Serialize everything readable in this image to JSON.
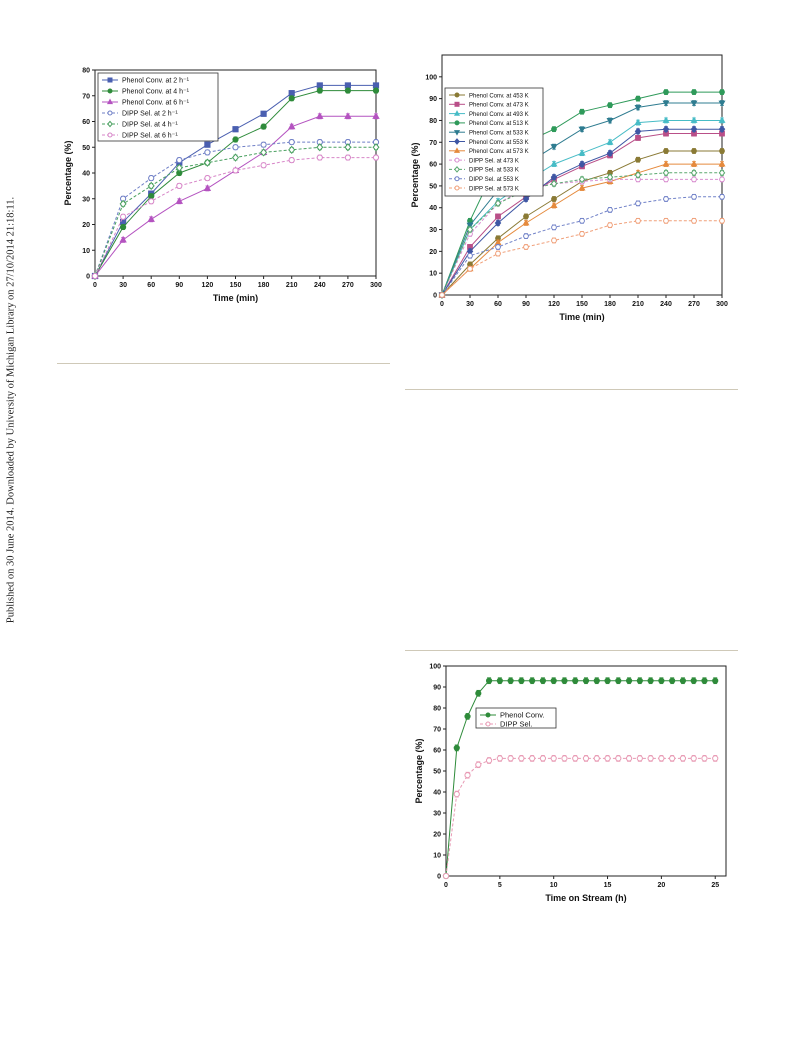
{
  "side_note": "Published on 30 June 2014. Downloaded by University of Michigan Library on 27/10/2014 21:18:11.",
  "chart_data": [
    {
      "id": "a",
      "type": "line",
      "xlabel": "Time (min)",
      "ylabel": "Percentage (%)",
      "xlim": [
        0,
        300
      ],
      "ylim": [
        0,
        80
      ],
      "xticks": [
        0,
        30,
        60,
        90,
        120,
        150,
        180,
        210,
        240,
        270,
        300
      ],
      "yticks": [
        0,
        10,
        20,
        30,
        40,
        50,
        60,
        70,
        80
      ],
      "legend_position": "top-left",
      "series": [
        {
          "name": "Phenol Conv. at 2 h⁻¹",
          "color": "#4a5fb0",
          "marker": "square",
          "filled": true,
          "dash": false,
          "x": [
            0,
            30,
            60,
            90,
            120,
            150,
            180,
            210,
            240,
            270,
            300
          ],
          "y": [
            0,
            21,
            32,
            44,
            51,
            57,
            63,
            71,
            74,
            74,
            74
          ]
        },
        {
          "name": "Phenol Conv. at 4 h⁻¹",
          "color": "#2e8b3a",
          "marker": "circle",
          "filled": true,
          "dash": false,
          "x": [
            0,
            30,
            60,
            90,
            120,
            150,
            180,
            210,
            240,
            270,
            300
          ],
          "y": [
            0,
            19,
            31,
            40,
            44,
            53,
            58,
            69,
            72,
            72,
            72
          ]
        },
        {
          "name": "Phenol Conv. at 6 h⁻¹",
          "color": "#b453c0",
          "marker": "triangle",
          "filled": true,
          "dash": false,
          "x": [
            0,
            30,
            60,
            90,
            120,
            150,
            180,
            210,
            240,
            270,
            300
          ],
          "y": [
            0,
            14,
            22,
            29,
            34,
            41,
            48,
            58,
            62,
            62,
            62
          ]
        },
        {
          "name": "DIPP Sel. at 2 h⁻¹",
          "color": "#6f7fc6",
          "marker": "circle",
          "filled": false,
          "dash": true,
          "x": [
            0,
            30,
            60,
            90,
            120,
            150,
            180,
            210,
            240,
            270,
            300
          ],
          "y": [
            0,
            30,
            38,
            45,
            48,
            50,
            51,
            52,
            52,
            52,
            52
          ]
        },
        {
          "name": "DIPP Sel. at 4 h⁻¹",
          "color": "#4aa060",
          "marker": "diamond",
          "filled": false,
          "dash": true,
          "x": [
            0,
            30,
            60,
            90,
            120,
            150,
            180,
            210,
            240,
            270,
            300
          ],
          "y": [
            0,
            28,
            35,
            42,
            44,
            46,
            48,
            49,
            50,
            50,
            50
          ]
        },
        {
          "name": "DIPP Sel. at 6 h⁻¹",
          "color": "#d786c8",
          "marker": "circle",
          "filled": false,
          "dash": true,
          "x": [
            0,
            30,
            60,
            90,
            120,
            150,
            180,
            210,
            240,
            270,
            300
          ],
          "y": [
            0,
            23,
            29,
            35,
            38,
            41,
            43,
            45,
            46,
            46,
            46
          ]
        }
      ]
    },
    {
      "id": "b",
      "type": "line",
      "xlabel": "Time (min)",
      "ylabel": "Percentage (%)",
      "xlim": [
        0,
        300
      ],
      "ylim": [
        0,
        110
      ],
      "xticks": [
        0,
        30,
        60,
        90,
        120,
        150,
        180,
        210,
        240,
        270,
        300
      ],
      "yticks": [
        0,
        10,
        20,
        30,
        40,
        50,
        60,
        70,
        80,
        90,
        100
      ],
      "legend_position": "top-left",
      "series": [
        {
          "name": "Phenol Conv. at 453 K",
          "color": "#8a7a35",
          "marker": "circle",
          "filled": true,
          "dash": false,
          "x": [
            0,
            30,
            60,
            90,
            120,
            150,
            180,
            210,
            240,
            270,
            300
          ],
          "y": [
            0,
            14,
            26,
            36,
            44,
            52,
            56,
            62,
            66,
            66,
            66
          ]
        },
        {
          "name": "Phenol Conv. at 473 K",
          "color": "#b94f88",
          "marker": "square",
          "filled": true,
          "dash": false,
          "x": [
            0,
            30,
            60,
            90,
            120,
            150,
            180,
            210,
            240,
            270,
            300
          ],
          "y": [
            0,
            22,
            36,
            45,
            53,
            59,
            64,
            72,
            74,
            74,
            74
          ]
        },
        {
          "name": "Phenol Conv. at 493 K",
          "color": "#47bcc6",
          "marker": "triangle",
          "filled": true,
          "dash": false,
          "x": [
            0,
            30,
            60,
            90,
            120,
            150,
            180,
            210,
            240,
            270,
            300
          ],
          "y": [
            0,
            30,
            43,
            52,
            60,
            65,
            70,
            79,
            80,
            80,
            80
          ]
        },
        {
          "name": "Phenol Conv. at 513 K",
          "color": "#2f9a5a",
          "marker": "circle",
          "filled": true,
          "dash": false,
          "x": [
            0,
            30,
            60,
            90,
            120,
            150,
            180,
            210,
            240,
            270,
            300
          ],
          "y": [
            0,
            34,
            61,
            70,
            76,
            84,
            87,
            90,
            93,
            93,
            93
          ]
        },
        {
          "name": "Phenol Conv. at 533 K",
          "color": "#2f7c90",
          "marker": "triangle-down",
          "filled": true,
          "dash": false,
          "x": [
            0,
            30,
            60,
            90,
            120,
            150,
            180,
            210,
            240,
            270,
            300
          ],
          "y": [
            0,
            32,
            48,
            60,
            68,
            76,
            80,
            86,
            88,
            88,
            88
          ]
        },
        {
          "name": "Phenol Conv. at 553 K",
          "color": "#3f57a4",
          "marker": "diamond",
          "filled": true,
          "dash": false,
          "x": [
            0,
            30,
            60,
            90,
            120,
            150,
            180,
            210,
            240,
            270,
            300
          ],
          "y": [
            0,
            20,
            33,
            44,
            54,
            60,
            65,
            75,
            76,
            76,
            76
          ]
        },
        {
          "name": "Phenol Conv. at 573 K",
          "color": "#e58a3d",
          "marker": "triangle",
          "filled": true,
          "dash": false,
          "x": [
            0,
            30,
            60,
            90,
            120,
            150,
            180,
            210,
            240,
            270,
            300
          ],
          "y": [
            0,
            12,
            24,
            33,
            41,
            49,
            52,
            56,
            60,
            60,
            60
          ]
        },
        {
          "name": "DIPP Sel. at 473 K",
          "color": "#d98fd0",
          "marker": "circle",
          "filled": false,
          "dash": true,
          "x": [
            0,
            30,
            60,
            90,
            120,
            150,
            180,
            210,
            240,
            270,
            300
          ],
          "y": [
            0,
            28,
            42,
            49,
            51,
            52,
            53,
            53,
            53,
            53,
            53
          ]
        },
        {
          "name": "DIPP Sel. at 533 K",
          "color": "#5aa86f",
          "marker": "diamond",
          "filled": false,
          "dash": true,
          "x": [
            0,
            30,
            60,
            90,
            120,
            150,
            180,
            210,
            240,
            270,
            300
          ],
          "y": [
            0,
            30,
            42,
            48,
            51,
            53,
            54,
            55,
            56,
            56,
            56
          ]
        },
        {
          "name": "DIPP Sel. at 553 K",
          "color": "#7182c8",
          "marker": "circle",
          "filled": false,
          "dash": true,
          "x": [
            0,
            30,
            60,
            90,
            120,
            150,
            180,
            210,
            240,
            270,
            300
          ],
          "y": [
            0,
            18,
            22,
            27,
            31,
            34,
            39,
            42,
            44,
            45,
            45
          ]
        },
        {
          "name": "DIPP Sel. at 573 K",
          "color": "#f0a07a",
          "marker": "circle",
          "filled": false,
          "dash": true,
          "x": [
            0,
            30,
            60,
            90,
            120,
            150,
            180,
            210,
            240,
            270,
            300
          ],
          "y": [
            0,
            12,
            19,
            22,
            25,
            28,
            32,
            34,
            34,
            34,
            34
          ]
        }
      ]
    },
    {
      "id": "c",
      "type": "line",
      "xlabel": "Time on Stream (h)",
      "ylabel": "Percentage (%)",
      "xlim": [
        0,
        26
      ],
      "ylim": [
        0,
        100
      ],
      "xticks": [
        0,
        5,
        10,
        15,
        20,
        25
      ],
      "yticks": [
        0,
        10,
        20,
        30,
        40,
        50,
        60,
        70,
        80,
        90,
        100
      ],
      "legend_position": "center-left",
      "series": [
        {
          "name": "Phenol Conv.",
          "color": "#2e8b3a",
          "marker": "circle",
          "filled": true,
          "dash": false,
          "x": [
            0,
            1,
            2,
            3,
            4,
            5,
            6,
            7,
            8,
            9,
            10,
            11,
            12,
            13,
            14,
            15,
            16,
            17,
            18,
            19,
            20,
            21,
            22,
            23,
            24,
            25
          ],
          "y": [
            0,
            61,
            76,
            87,
            93,
            93,
            93,
            93,
            93,
            93,
            93,
            93,
            93,
            93,
            93,
            93,
            93,
            93,
            93,
            93,
            93,
            93,
            93,
            93,
            93,
            93
          ]
        },
        {
          "name": "DIPP Sel.",
          "color": "#e89ab4",
          "marker": "circle",
          "filled": false,
          "dash": true,
          "x": [
            0,
            1,
            2,
            3,
            4,
            5,
            6,
            7,
            8,
            9,
            10,
            11,
            12,
            13,
            14,
            15,
            16,
            17,
            18,
            19,
            20,
            21,
            22,
            23,
            24,
            25
          ],
          "y": [
            0,
            39,
            48,
            53,
            55,
            56,
            56,
            56,
            56,
            56,
            56,
            56,
            56,
            56,
            56,
            56,
            56,
            56,
            56,
            56,
            56,
            56,
            56,
            56,
            56,
            56
          ]
        }
      ]
    }
  ]
}
